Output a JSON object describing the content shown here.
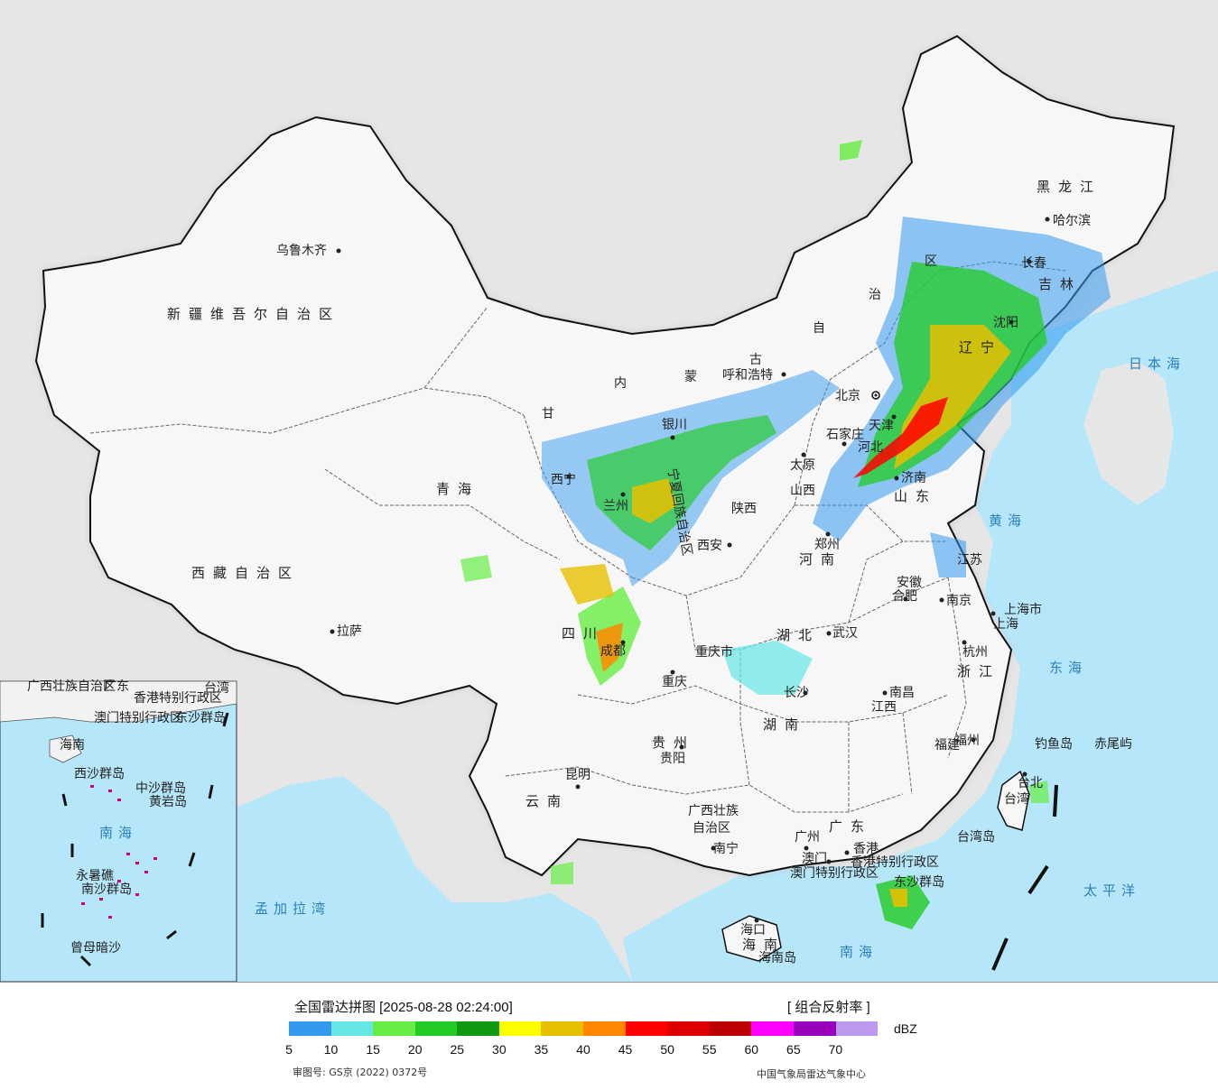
{
  "map": {
    "regions": {
      "xinjiang": "新疆维吾尔自治区",
      "xizang": "西藏自治区",
      "qinghai": "青海",
      "gansu": "甘",
      "ningxia": "宁夏回族自治区",
      "neimenggu_1": "内",
      "neimenggu_2": "蒙",
      "neimenggu_3": "古",
      "neimenggu_4": "自",
      "neimenggu_5": "治",
      "neimenggu_6": "区",
      "heilongjiang": "黑龙江",
      "jilin": "吉林",
      "liaoning": "辽宁",
      "hebei": "河北",
      "shanxi": "山西",
      "shandong": "山东",
      "henan": "河南",
      "shaanxi": "陕西",
      "sichuan": "四川",
      "hubei": "湖北",
      "anhui": "安徽",
      "jiangsu": "江苏",
      "zhejiang": "浙江",
      "jiangxi": "江西",
      "hunan": "湖南",
      "guizhou": "贵州",
      "yunnan": "云南",
      "guangxi_1": "广西壮族",
      "guangxi_2": "自治区",
      "guangdong": "广东",
      "fujian": "福建",
      "taiwan": "台湾",
      "hainan": "海南",
      "chongqing": "重庆市",
      "shanghai": "上海市",
      "hk": "香港特别行政区",
      "macau": "澳门特别行政区"
    },
    "cities": {
      "urumqi": "乌鲁木齐",
      "lhasa": "拉萨",
      "xining": "西宁",
      "lanzhou": "兰州",
      "yinchuan": "银川",
      "huhhot": "呼和浩特",
      "beijing": "北京",
      "tianjin": "天津",
      "shijiazhuang": "石家庄",
      "taiyuan": "太原",
      "jinan": "济南",
      "zhengzhou": "郑州",
      "xian": "西安",
      "chengdu": "成都",
      "chongqing": "重庆",
      "wuhan": "武汉",
      "hefei": "合肥",
      "nanjing": "南京",
      "shanghai": "上海",
      "hangzhou": "杭州",
      "nanchang": "南昌",
      "changsha": "长沙",
      "guiyang": "贵阳",
      "kunming": "昆明",
      "nanning": "南宁",
      "guangzhou": "广州",
      "hongkong": "香港",
      "macau": "澳门",
      "fuzhou": "福州",
      "taipei": "台北",
      "haikou": "海口",
      "harbin": "哈尔滨",
      "changchun": "长春",
      "shenyang": "沈阳"
    },
    "islands": {
      "diaoyu": "钓鱼岛",
      "chiwei": "赤尾屿",
      "taiwan_island": "台湾岛",
      "dongsha": "东沙群岛",
      "hainan_island": "海南岛"
    },
    "seas": {
      "japan_sea": "日本海",
      "yellow_sea": "黄海",
      "east_sea": "东海",
      "pacific": "太平洋",
      "south_sea": "南海",
      "bay_bengal": "孟加拉湾"
    },
    "inset": {
      "south_sea": "南海",
      "xisha": "西沙群岛",
      "zhongsha": "中沙群岛",
      "nansha": "南沙群岛",
      "huangyan": "黄岩岛",
      "zengmu": "曾母暗沙",
      "yongshu": "永暑礁",
      "guangdong": "广东",
      "guangxi": "广西壮族自治区",
      "hk": "香港特别行政区",
      "macau": "澳门特别行政区",
      "taiwan": "台湾",
      "dongsha": "东沙群岛",
      "hainan": "海南"
    }
  },
  "legend": {
    "title": "全国雷达拼图 [2025-08-28 02:24:00]",
    "product": "[ 组合反射率 ]",
    "unit": "dBZ",
    "colors": [
      "#3399ee",
      "#66e6e6",
      "#66ee44",
      "#22cc22",
      "#119911",
      "#ffff00",
      "#e6c000",
      "#ff8800",
      "#ff0000",
      "#dd0000",
      "#bb0000",
      "#ff00ff",
      "#9900bb",
      "#bb99ee"
    ],
    "ticks": [
      "5",
      "10",
      "15",
      "20",
      "25",
      "30",
      "35",
      "40",
      "45",
      "50",
      "55",
      "60",
      "65",
      "70"
    ]
  },
  "footer": {
    "approval": "审图号: GS京 (2022) 0372号",
    "agency": "中国气象局雷达气象中心"
  }
}
